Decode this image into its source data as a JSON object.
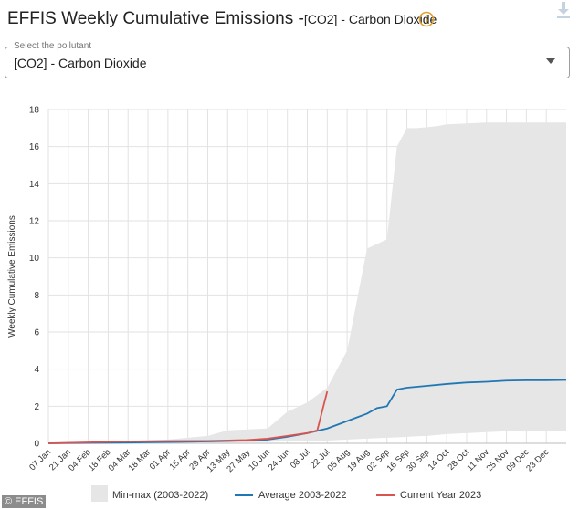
{
  "header": {
    "title_main": "EFFIS Weekly Cumulative Emissions -",
    "title_sub": "[CO2] - Carbon Dioxide",
    "info_icon": "info-circle-icon",
    "download_icon": "download-icon"
  },
  "select": {
    "label": "Select the pollutant",
    "value": "[CO2] - Carbon Dioxide",
    "arrow_icon": "caret-down-icon"
  },
  "colors": {
    "band": "#e6e6e6",
    "average": "#1f77b4",
    "current": "#d9534f",
    "accent": "#e0a32e"
  },
  "credit": "© EFFIS",
  "chart_data": {
    "type": "line",
    "ylabel": "Weekly Cumulative Emissions",
    "ylim": [
      0,
      18
    ],
    "yticks": [
      0,
      2,
      4,
      6,
      8,
      10,
      12,
      14,
      16,
      18
    ],
    "xtick_labels": [
      "07 Jan",
      "21 Jan",
      "04 Feb",
      "18 Feb",
      "04 Mar",
      "18 Mar",
      "01 Apr",
      "15 Apr",
      "29 Apr",
      "13 May",
      "27 May",
      "10 Jun",
      "24 Jun",
      "08 Jul",
      "22 Jul",
      "05 Aug",
      "19 Aug",
      "02 Sep",
      "16 Sep",
      "30 Sep",
      "14 Oct",
      "28 Oct",
      "11 Nov",
      "25 Nov",
      "09 Dec",
      "23 Dec"
    ],
    "grid": true,
    "legend_position": "bottom",
    "legend": {
      "band": "Min-max (2003-2022)",
      "average": "Average 2003-2022",
      "current": "Current Year 2023"
    },
    "band": {
      "name": "Min-max (2003-2022)",
      "week_index": [
        0,
        4,
        8,
        12,
        14,
        16,
        18,
        20,
        22,
        24,
        26,
        28,
        30,
        32,
        34,
        35,
        36,
        37,
        38,
        39,
        40,
        42,
        44,
        46,
        48,
        50,
        52
      ],
      "min": [
        0,
        0,
        0,
        0.02,
        0.03,
        0.03,
        0.04,
        0.05,
        0.08,
        0.1,
        0.12,
        0.15,
        0.2,
        0.25,
        0.3,
        0.32,
        0.35,
        0.38,
        0.4,
        0.45,
        0.5,
        0.55,
        0.6,
        0.65,
        0.65,
        0.65,
        0.65
      ],
      "max": [
        0.05,
        0.1,
        0.15,
        0.2,
        0.3,
        0.4,
        0.7,
        0.75,
        0.8,
        1.7,
        2.2,
        3.0,
        5.0,
        10.5,
        11.0,
        16.0,
        17.0,
        17.0,
        17.05,
        17.1,
        17.2,
        17.25,
        17.3,
        17.3,
        17.3,
        17.3,
        17.3
      ]
    },
    "series": [
      {
        "name": "Average 2003-2022",
        "week_index": [
          0,
          4,
          8,
          12,
          16,
          20,
          22,
          24,
          26,
          28,
          30,
          32,
          33,
          34,
          35,
          36,
          38,
          40,
          42,
          44,
          46,
          48,
          50,
          52
        ],
        "values": [
          0,
          0.02,
          0.04,
          0.07,
          0.1,
          0.15,
          0.2,
          0.35,
          0.55,
          0.8,
          1.2,
          1.6,
          1.9,
          2.0,
          2.9,
          3.0,
          3.1,
          3.2,
          3.28,
          3.32,
          3.38,
          3.4,
          3.4,
          3.42
        ]
      },
      {
        "name": "Current Year 2023",
        "week_index": [
          0,
          4,
          8,
          12,
          16,
          20,
          22,
          24,
          26,
          27,
          28
        ],
        "values": [
          0,
          0.05,
          0.1,
          0.12,
          0.13,
          0.18,
          0.25,
          0.4,
          0.55,
          0.7,
          2.8
        ]
      }
    ]
  }
}
